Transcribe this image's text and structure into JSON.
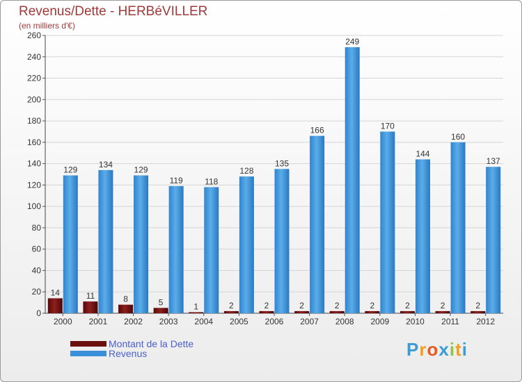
{
  "chart_data": {
    "type": "bar",
    "title": "Revenus/Dette - HERBéVILLER",
    "subtitle": "(en milliers d'€)",
    "categories": [
      "2000",
      "2001",
      "2002",
      "2003",
      "2004",
      "2005",
      "2006",
      "2007",
      "2008",
      "2009",
      "2010",
      "2011",
      "2012"
    ],
    "series": [
      {
        "name": "Montant de la Dette",
        "color": "#6b0f0f",
        "values": [
          14,
          11,
          8,
          5,
          1,
          2,
          2,
          2,
          2,
          2,
          2,
          2,
          2
        ]
      },
      {
        "name": "Revenus",
        "color": "#3a8fd8",
        "values": [
          129,
          134,
          129,
          119,
          118,
          128,
          135,
          166,
          249,
          170,
          144,
          160,
          137
        ]
      }
    ],
    "ylim": [
      0,
      260
    ],
    "yticks": [
      0,
      20,
      40,
      60,
      80,
      100,
      120,
      140,
      160,
      180,
      200,
      220,
      240,
      260
    ],
    "grid": true,
    "legend_position": "bottom-left"
  },
  "logo": {
    "text": "Proxiti",
    "letters": [
      "P",
      "r",
      "o",
      "x",
      "i",
      "t",
      "i"
    ],
    "colors": [
      "#3a9bd5",
      "#f0a020",
      "#e85a20",
      "#3a9bd5",
      "#8cc63f",
      "#f0a020",
      "#3a9bd5"
    ]
  }
}
